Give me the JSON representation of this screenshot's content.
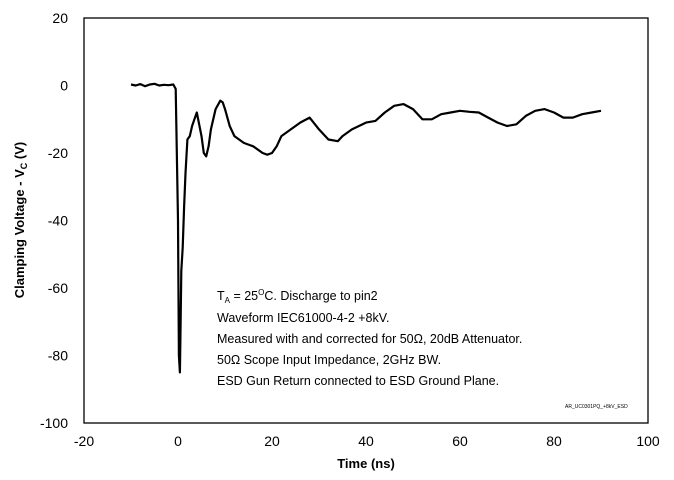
{
  "chart_data": {
    "type": "line",
    "xlabel": "Time (ns)",
    "ylabel_main": "Clamping Voltage - V",
    "ylabel_sub": "C",
    "ylabel_end": " (V)",
    "xlim": [
      -20,
      100
    ],
    "ylim": [
      -100,
      20
    ],
    "xticks": [
      -20,
      0,
      20,
      40,
      60,
      80,
      100
    ],
    "yticks": [
      20,
      0,
      -20,
      -40,
      -60,
      -80,
      -100
    ],
    "grid": false,
    "series_color": "#000000",
    "series": [
      {
        "x": [
          -10,
          -9,
          -8,
          -7,
          -6,
          -5,
          -4,
          -3,
          -2,
          -1,
          -0.5,
          0,
          0.2,
          0.4,
          0.5,
          0.7,
          1,
          1.3,
          1.6,
          2,
          2.5,
          3,
          3.5,
          4,
          5,
          5.5,
          6,
          6.5,
          7,
          8,
          9,
          9.5,
          10,
          11,
          12,
          13,
          14,
          15,
          16,
          18,
          19,
          20,
          21,
          22,
          24,
          26,
          28,
          30,
          32,
          34,
          35,
          37,
          40,
          42,
          44,
          46,
          48,
          50,
          52,
          54,
          56,
          58,
          60,
          62,
          64,
          66,
          68,
          70,
          72,
          74,
          76,
          78,
          80,
          82,
          84,
          86,
          88,
          90
        ],
        "y": [
          0.3,
          0,
          0.4,
          -0.2,
          0.3,
          0.5,
          0,
          0.2,
          0.1,
          0.3,
          -1,
          -40,
          -80,
          -85,
          -75,
          -55,
          -48,
          -36,
          -26,
          -16,
          -15,
          -12,
          -10,
          -8,
          -15,
          -20,
          -21,
          -18,
          -13,
          -7,
          -4.5,
          -5,
          -7,
          -12,
          -15,
          -16,
          -17,
          -17.5,
          -18,
          -20,
          -20.5,
          -20,
          -18,
          -15,
          -13,
          -11,
          -9.5,
          -13,
          -16,
          -16.5,
          -15,
          -13,
          -11,
          -10.5,
          -8,
          -6,
          -5.5,
          -7,
          -10,
          -10,
          -8.5,
          -8,
          -7.5,
          -7.8,
          -8,
          -9.5,
          -11,
          -12,
          -11.5,
          -9,
          -7.5,
          -7,
          -8,
          -9.5,
          -9.5,
          -8.5,
          -8,
          -7.5
        ]
      }
    ],
    "annotation": {
      "line1_main": "T",
      "line1_sub": "A",
      "line1_rest_a": " = 25",
      "line1_sup": "O",
      "line1_rest_b": "C. Discharge to pin2",
      "line2": "Waveform IEC61000-4-2 +8kV.",
      "line3": "Measured with and corrected for 50Ω, 20dB Attenuator.",
      "line4": "50Ω Scope Input Impedance, 2GHz BW.",
      "line5": "ESD Gun Return connected to ESD Ground Plane."
    },
    "figure_id": "AR_UC0301PQ_+8kV_ESD"
  }
}
